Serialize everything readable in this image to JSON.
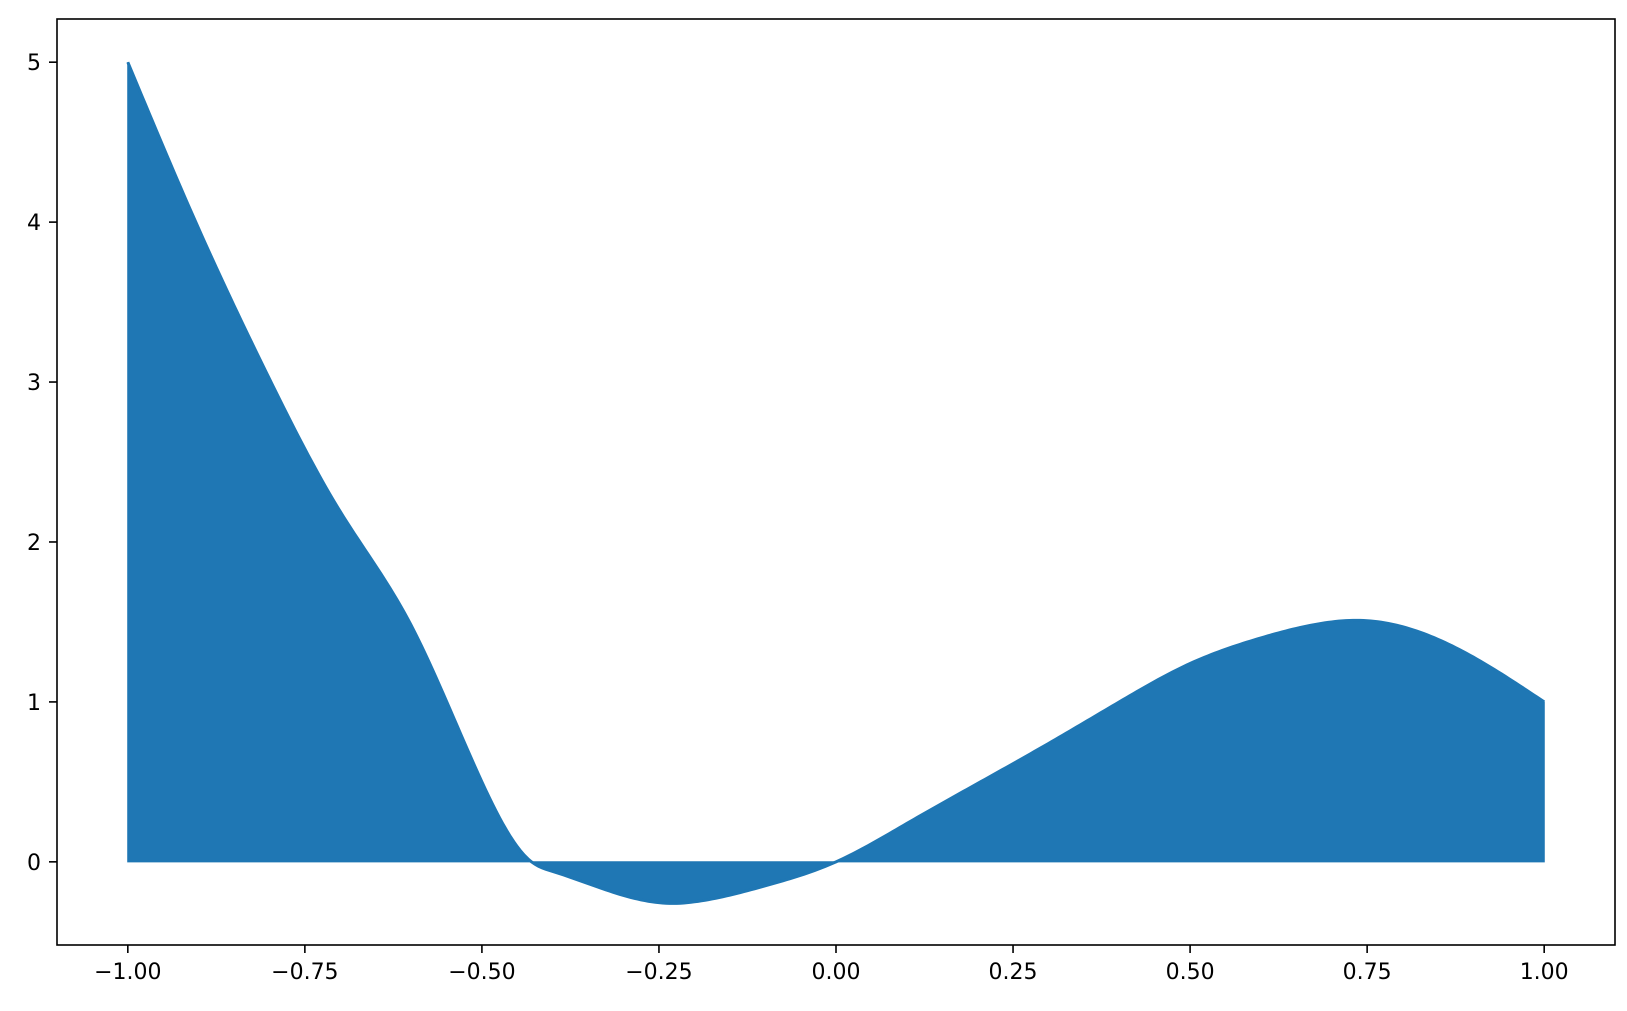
{
  "chart_data": {
    "type": "area",
    "title": "",
    "xlabel": "",
    "ylabel": "",
    "xlim": [
      -1.1,
      1.1
    ],
    "ylim": [
      -0.52,
      5.27
    ],
    "grid": false,
    "legend": "none",
    "x_ticks": [
      -1.0,
      -0.75,
      -0.5,
      -0.25,
      0.0,
      0.25,
      0.5,
      0.75,
      1.0
    ],
    "x_tick_labels": [
      "−1.00",
      "−0.75",
      "−0.50",
      "−0.25",
      "0.00",
      "0.25",
      "0.50",
      "0.75",
      "1.00"
    ],
    "y_ticks": [
      0,
      1,
      2,
      3,
      4,
      5
    ],
    "y_tick_labels": [
      "0",
      "1",
      "2",
      "3",
      "4",
      "5"
    ],
    "fill_baseline": 0,
    "series": [
      {
        "x": [
          -1.0,
          -0.9,
          -0.8,
          -0.7,
          -0.6,
          -0.5,
          -0.43,
          -0.4,
          -0.3,
          -0.23,
          -0.2,
          -0.1,
          0.0,
          0.1,
          0.2,
          0.3,
          0.4,
          0.5,
          0.6,
          0.7,
          0.73,
          0.8,
          0.9,
          1.0
        ],
        "y": [
          5.0,
          3.96,
          3.02,
          2.19,
          1.48,
          0.5,
          0.0,
          -0.06,
          -0.21,
          -0.26,
          -0.25,
          -0.15,
          0.0,
          0.24,
          0.49,
          0.74,
          1.0,
          1.24,
          1.4,
          1.5,
          1.51,
          1.47,
          1.28,
          1.0
        ],
        "color": "#1f77b4"
      }
    ]
  }
}
